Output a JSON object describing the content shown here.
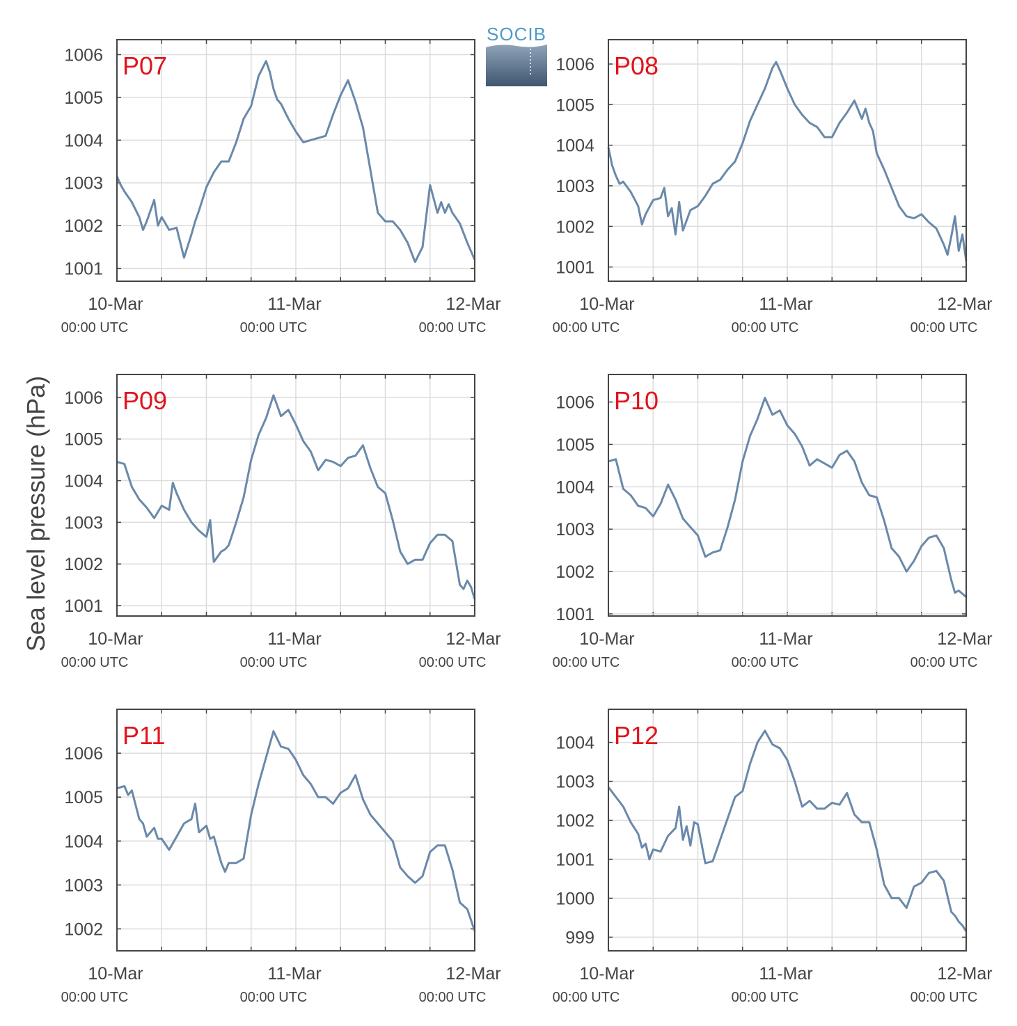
{
  "figure": {
    "ylabel": "Sea level pressure (hPa)",
    "logo_text": "SOCIB",
    "line_color": "#6a89aa",
    "station_label_color": "#e2141c",
    "grid_color": "#dcdcdc",
    "axis_color": "#444444"
  },
  "chart_data": [
    {
      "type": "line",
      "station": "P07",
      "x_ticks": [
        {
          "label": "10-Mar",
          "sub": "00:00 UTC"
        },
        {
          "label": "11-Mar",
          "sub": "00:00 UTC"
        },
        {
          "label": "12-Mar",
          "sub": "00:00 UTC"
        }
      ],
      "xlim_hours": [
        0,
        48
      ],
      "ylim": [
        1000.7,
        1006.35
      ],
      "yticks": [
        1001,
        1002,
        1003,
        1004,
        1005,
        1006
      ],
      "x_hours": [
        0,
        0.5,
        1,
        2,
        3,
        3.5,
        4,
        5,
        5.5,
        6,
        7,
        8,
        9,
        10,
        10.5,
        11,
        12,
        13,
        14,
        15,
        16,
        17,
        18,
        19,
        20,
        20.5,
        21,
        21.5,
        22,
        23,
        24,
        25,
        26,
        27,
        28,
        29,
        30,
        31,
        32,
        33,
        34,
        35,
        36,
        37,
        38,
        39,
        40,
        41,
        42,
        43,
        43.5,
        44,
        44.5,
        45,
        46,
        47,
        48
      ],
      "values": [
        1003.15,
        1002.95,
        1002.8,
        1002.55,
        1002.2,
        1001.9,
        1002.1,
        1002.6,
        1002.0,
        1002.2,
        1001.9,
        1001.95,
        1001.25,
        1001.8,
        1002.1,
        1002.35,
        1002.9,
        1003.25,
        1003.5,
        1003.5,
        1003.95,
        1004.5,
        1004.8,
        1005.5,
        1005.85,
        1005.6,
        1005.2,
        1004.95,
        1004.85,
        1004.5,
        1004.2,
        1003.95,
        1004.0,
        1004.05,
        1004.1,
        1004.6,
        1005.05,
        1005.4,
        1004.9,
        1004.3,
        1003.3,
        1002.3,
        1002.1,
        1002.1,
        1001.9,
        1001.6,
        1001.15,
        1001.5,
        1002.95,
        1002.3,
        1002.55,
        1002.3,
        1002.5,
        1002.3,
        1002.05,
        1001.6,
        1001.2
      ]
    },
    {
      "type": "line",
      "station": "P08",
      "x_ticks": [
        {
          "label": "10-Mar",
          "sub": "00:00 UTC"
        },
        {
          "label": "11-Mar",
          "sub": "00:00 UTC"
        },
        {
          "label": "12-Mar",
          "sub": "00:00 UTC"
        }
      ],
      "xlim_hours": [
        0,
        48
      ],
      "ylim": [
        1000.65,
        1006.6
      ],
      "yticks": [
        1001,
        1002,
        1003,
        1004,
        1005,
        1006
      ],
      "x_hours": [
        0,
        0.5,
        1,
        1.5,
        2,
        3,
        4,
        4.5,
        5,
        6,
        7,
        7.5,
        8,
        8.5,
        9,
        9.5,
        10,
        11,
        12,
        13,
        14,
        15,
        16,
        17,
        18,
        19,
        20,
        21,
        22,
        22.5,
        23,
        24,
        25,
        26,
        27,
        28,
        29,
        30,
        31,
        32,
        33,
        34,
        34.5,
        35,
        35.5,
        36,
        37,
        38,
        39,
        40,
        41,
        42,
        43,
        44,
        45,
        45.5,
        46,
        46.5,
        47,
        47.5,
        48
      ],
      "values": [
        1003.95,
        1003.5,
        1003.25,
        1003.05,
        1003.1,
        1002.85,
        1002.5,
        1002.05,
        1002.3,
        1002.65,
        1002.7,
        1002.95,
        1002.25,
        1002.45,
        1001.8,
        1002.6,
        1001.9,
        1002.4,
        1002.5,
        1002.75,
        1003.05,
        1003.15,
        1003.4,
        1003.6,
        1004.05,
        1004.6,
        1005.0,
        1005.4,
        1005.9,
        1006.05,
        1005.85,
        1005.4,
        1005.0,
        1004.75,
        1004.55,
        1004.45,
        1004.2,
        1004.2,
        1004.55,
        1004.8,
        1005.1,
        1004.65,
        1004.9,
        1004.55,
        1004.35,
        1003.8,
        1003.4,
        1002.95,
        1002.5,
        1002.25,
        1002.2,
        1002.3,
        1002.1,
        1001.95,
        1001.55,
        1001.3,
        1001.75,
        1002.25,
        1001.4,
        1001.8,
        1001.15
      ]
    },
    {
      "type": "line",
      "station": "P09",
      "x_ticks": [
        {
          "label": "10-Mar",
          "sub": "00:00 UTC"
        },
        {
          "label": "11-Mar",
          "sub": "00:00 UTC"
        },
        {
          "label": "12-Mar",
          "sub": "00:00 UTC"
        }
      ],
      "xlim_hours": [
        0,
        48
      ],
      "ylim": [
        1000.75,
        1006.55
      ],
      "yticks": [
        1001,
        1002,
        1003,
        1004,
        1005,
        1006
      ],
      "x_hours": [
        0,
        1,
        2,
        3,
        4,
        5,
        6,
        7,
        7.5,
        8,
        9,
        10,
        11,
        12,
        12.5,
        13,
        14,
        14.5,
        15,
        16,
        17,
        18,
        19,
        20,
        21,
        22,
        23,
        24,
        25,
        26,
        27,
        28,
        29,
        30,
        31,
        32,
        33,
        34,
        35,
        36,
        37,
        38,
        39,
        40,
        41,
        42,
        43,
        44,
        45,
        46,
        46.5,
        47,
        47.5,
        48
      ],
      "values": [
        1004.45,
        1004.4,
        1003.85,
        1003.55,
        1003.35,
        1003.1,
        1003.4,
        1003.3,
        1003.95,
        1003.7,
        1003.3,
        1003.0,
        1002.8,
        1002.65,
        1003.05,
        1002.05,
        1002.3,
        1002.35,
        1002.45,
        1003.0,
        1003.6,
        1004.5,
        1005.1,
        1005.5,
        1006.05,
        1005.55,
        1005.7,
        1005.35,
        1004.95,
        1004.7,
        1004.25,
        1004.5,
        1004.45,
        1004.35,
        1004.55,
        1004.6,
        1004.85,
        1004.3,
        1003.85,
        1003.7,
        1003.05,
        1002.3,
        1002.0,
        1002.1,
        1002.1,
        1002.5,
        1002.7,
        1002.7,
        1002.55,
        1001.5,
        1001.4,
        1001.6,
        1001.45,
        1001.15
      ]
    },
    {
      "type": "line",
      "station": "P10",
      "x_ticks": [
        {
          "label": "10-Mar",
          "sub": "00:00 UTC"
        },
        {
          "label": "11-Mar",
          "sub": "00:00 UTC"
        },
        {
          "label": "12-Mar",
          "sub": "00:00 UTC"
        }
      ],
      "xlim_hours": [
        0,
        48
      ],
      "ylim": [
        1000.95,
        1006.65
      ],
      "yticks": [
        1001,
        1002,
        1003,
        1004,
        1005,
        1006
      ],
      "x_hours": [
        0,
        1,
        2,
        3,
        4,
        5,
        6,
        7,
        8,
        9,
        10,
        11,
        12,
        12.5,
        13,
        14,
        15,
        16,
        17,
        18,
        19,
        20,
        21,
        22,
        23,
        24,
        25,
        26,
        27,
        28,
        29,
        30,
        31,
        32,
        33,
        34,
        35,
        36,
        37,
        38,
        39,
        40,
        41,
        42,
        43,
        44,
        45,
        46,
        46.5,
        47,
        48
      ],
      "values": [
        1004.6,
        1004.65,
        1003.95,
        1003.8,
        1003.55,
        1003.5,
        1003.3,
        1003.6,
        1004.05,
        1003.7,
        1003.25,
        1003.05,
        1002.85,
        1002.6,
        1002.35,
        1002.45,
        1002.5,
        1003.05,
        1003.7,
        1004.6,
        1005.2,
        1005.6,
        1006.1,
        1005.7,
        1005.8,
        1005.45,
        1005.25,
        1004.95,
        1004.5,
        1004.65,
        1004.55,
        1004.45,
        1004.75,
        1004.85,
        1004.6,
        1004.1,
        1003.8,
        1003.75,
        1003.2,
        1002.55,
        1002.35,
        1002.0,
        1002.25,
        1002.6,
        1002.8,
        1002.85,
        1002.55,
        1001.8,
        1001.5,
        1001.55,
        1001.4
      ]
    },
    {
      "type": "line",
      "station": "P11",
      "x_ticks": [
        {
          "label": "10-Mar",
          "sub": "00:00 UTC"
        },
        {
          "label": "11-Mar",
          "sub": "00:00 UTC"
        },
        {
          "label": "12-Mar",
          "sub": "00:00 UTC"
        }
      ],
      "xlim_hours": [
        0,
        48
      ],
      "ylim": [
        1001.5,
        1007.0
      ],
      "yticks": [
        1002,
        1003,
        1004,
        1005,
        1006
      ],
      "x_hours": [
        0,
        1,
        1.5,
        2,
        3,
        3.5,
        4,
        5,
        5.5,
        6,
        7,
        8,
        9,
        10,
        10.5,
        11,
        12,
        12.5,
        13,
        14,
        14.5,
        15,
        16,
        17,
        18,
        19,
        20,
        21,
        22,
        23,
        24,
        25,
        26,
        27,
        28,
        29,
        30,
        31,
        32,
        33,
        34,
        35,
        36,
        37,
        38,
        39,
        40,
        41,
        42,
        43,
        44,
        45,
        46,
        47,
        48
      ],
      "values": [
        1005.2,
        1005.25,
        1005.05,
        1005.15,
        1004.5,
        1004.4,
        1004.1,
        1004.3,
        1004.05,
        1004.05,
        1003.8,
        1004.1,
        1004.4,
        1004.5,
        1004.85,
        1004.2,
        1004.35,
        1004.05,
        1004.1,
        1003.5,
        1003.3,
        1003.5,
        1003.5,
        1003.6,
        1004.6,
        1005.3,
        1005.9,
        1006.5,
        1006.15,
        1006.1,
        1005.85,
        1005.5,
        1005.3,
        1005.0,
        1005.0,
        1004.85,
        1005.1,
        1005.2,
        1005.5,
        1004.95,
        1004.6,
        1004.4,
        1004.2,
        1004.0,
        1003.4,
        1003.2,
        1003.05,
        1003.2,
        1003.75,
        1003.9,
        1003.9,
        1003.35,
        1002.6,
        1002.45,
        1001.95
      ]
    },
    {
      "type": "line",
      "station": "P12",
      "x_ticks": [
        {
          "label": "10-Mar",
          "sub": "00:00 UTC"
        },
        {
          "label": "11-Mar",
          "sub": "00:00 UTC"
        },
        {
          "label": "12-Mar",
          "sub": "00:00 UTC"
        }
      ],
      "xlim_hours": [
        0,
        48
      ],
      "ylim": [
        998.65,
        1004.85
      ],
      "yticks": [
        999,
        1000,
        1001,
        1002,
        1003,
        1004
      ],
      "x_hours": [
        0,
        1,
        2,
        3,
        4,
        4.5,
        5,
        5.5,
        6,
        7,
        8,
        9,
        9.5,
        10,
        10.5,
        11,
        11.5,
        12,
        13,
        14,
        15,
        16,
        17,
        18,
        19,
        20,
        21,
        22,
        23,
        24,
        25,
        26,
        27,
        28,
        29,
        30,
        31,
        32,
        33,
        34,
        35,
        36,
        37,
        38,
        39,
        40,
        41,
        42,
        43,
        44,
        45,
        46,
        46.5,
        47,
        47.5,
        48
      ],
      "values": [
        1002.85,
        1002.6,
        1002.35,
        1001.95,
        1001.65,
        1001.3,
        1001.4,
        1001.0,
        1001.25,
        1001.2,
        1001.6,
        1001.8,
        1002.35,
        1001.5,
        1001.85,
        1001.35,
        1001.95,
        1001.9,
        1000.9,
        1000.95,
        1001.5,
        1002.05,
        1002.6,
        1002.75,
        1003.45,
        1004.0,
        1004.3,
        1003.95,
        1003.85,
        1003.55,
        1003.0,
        1002.35,
        1002.5,
        1002.3,
        1002.3,
        1002.45,
        1002.4,
        1002.7,
        1002.15,
        1001.95,
        1001.95,
        1001.25,
        1000.35,
        1000.0,
        1000.0,
        999.75,
        1000.3,
        1000.4,
        1000.65,
        1000.7,
        1000.45,
        999.65,
        999.55,
        999.4,
        999.3,
        999.15
      ]
    }
  ]
}
